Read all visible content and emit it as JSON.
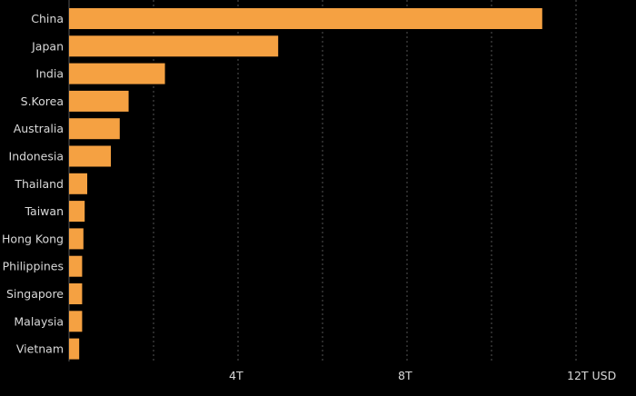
{
  "chart_data": {
    "type": "bar",
    "orientation": "horizontal",
    "categories": [
      "China",
      "Japan",
      "India",
      "S.Korea",
      "Australia",
      "Indonesia",
      "Thailand",
      "Taiwan",
      "Hong Kong",
      "Philippines",
      "Singapore",
      "Malaysia",
      "Vietnam"
    ],
    "values": [
      11.2,
      4.95,
      2.27,
      1.41,
      1.2,
      0.99,
      0.43,
      0.37,
      0.34,
      0.31,
      0.31,
      0.31,
      0.24
    ],
    "x_ticks": [
      {
        "value": 4,
        "label": "4T"
      },
      {
        "value": 8,
        "label": "8T"
      },
      {
        "value": 12,
        "label": "12T USD"
      }
    ],
    "xlim": [
      0,
      12
    ],
    "grid": true,
    "bar_color": "#f5a142",
    "grid_color": "#555555",
    "background": "#000000"
  }
}
